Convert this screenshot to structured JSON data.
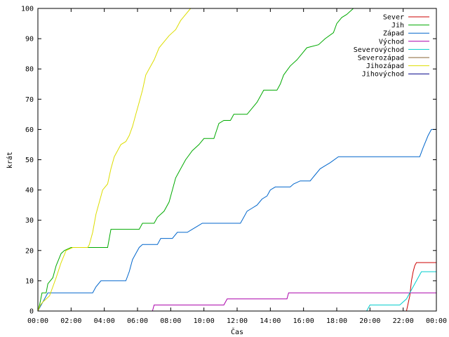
{
  "chart_data": {
    "type": "line",
    "title": "",
    "xlabel": "Čas",
    "ylabel": "krát",
    "xlim": [
      0,
      24
    ],
    "ylim": [
      0,
      100
    ],
    "x_ticks": [
      {
        "value": 0,
        "label": "00:00"
      },
      {
        "value": 2,
        "label": "02:00"
      },
      {
        "value": 4,
        "label": "04:00"
      },
      {
        "value": 6,
        "label": "06:00"
      },
      {
        "value": 8,
        "label": "08:00"
      },
      {
        "value": 10,
        "label": "10:00"
      },
      {
        "value": 12,
        "label": "12:00"
      },
      {
        "value": 14,
        "label": "14:00"
      },
      {
        "value": 16,
        "label": "16:00"
      },
      {
        "value": 18,
        "label": "18:00"
      },
      {
        "value": 20,
        "label": "20:00"
      },
      {
        "value": 22,
        "label": "22:00"
      },
      {
        "value": 24,
        "label": "00:00"
      }
    ],
    "y_ticks": [
      {
        "value": 0,
        "label": "0"
      },
      {
        "value": 10,
        "label": "10"
      },
      {
        "value": 20,
        "label": "20"
      },
      {
        "value": 30,
        "label": "30"
      },
      {
        "value": 40,
        "label": "40"
      },
      {
        "value": 50,
        "label": "50"
      },
      {
        "value": 60,
        "label": "60"
      },
      {
        "value": 70,
        "label": "70"
      },
      {
        "value": 80,
        "label": "80"
      },
      {
        "value": 90,
        "label": "90"
      },
      {
        "value": 100,
        "label": "100"
      }
    ],
    "grid": false,
    "legend_position": "top-right",
    "series": [
      {
        "name": "Sever",
        "color": "#cc0000",
        "points": [
          [
            21.5,
            0
          ],
          [
            22.2,
            0
          ],
          [
            22.4,
            5
          ],
          [
            22.5,
            10
          ],
          [
            22.6,
            13
          ],
          [
            22.7,
            15
          ],
          [
            22.8,
            16
          ],
          [
            24,
            16
          ]
        ]
      },
      {
        "name": "Jih",
        "color": "#00aa00",
        "points": [
          [
            0,
            0
          ],
          [
            0.1,
            2
          ],
          [
            0.25,
            6
          ],
          [
            0.5,
            6
          ],
          [
            0.6,
            9
          ],
          [
            0.9,
            11
          ],
          [
            1.1,
            15
          ],
          [
            1.4,
            19
          ],
          [
            1.6,
            20
          ],
          [
            2.0,
            21
          ],
          [
            2.8,
            21
          ],
          [
            4.2,
            21
          ],
          [
            4.4,
            27
          ],
          [
            6.1,
            27
          ],
          [
            6.3,
            29
          ],
          [
            7.0,
            29
          ],
          [
            7.2,
            31
          ],
          [
            7.6,
            33
          ],
          [
            7.9,
            36
          ],
          [
            8.1,
            40
          ],
          [
            8.3,
            44
          ],
          [
            8.6,
            47
          ],
          [
            8.9,
            50
          ],
          [
            9.3,
            53
          ],
          [
            9.7,
            55
          ],
          [
            10.0,
            57
          ],
          [
            10.6,
            57
          ],
          [
            10.9,
            62
          ],
          [
            11.2,
            63
          ],
          [
            11.6,
            63
          ],
          [
            11.8,
            65
          ],
          [
            12.6,
            65
          ],
          [
            12.9,
            67
          ],
          [
            13.2,
            69
          ],
          [
            13.6,
            73
          ],
          [
            14.4,
            73
          ],
          [
            14.6,
            75
          ],
          [
            14.8,
            78
          ],
          [
            15.2,
            81
          ],
          [
            15.6,
            83
          ],
          [
            15.9,
            85
          ],
          [
            16.2,
            87
          ],
          [
            16.9,
            88
          ],
          [
            17.3,
            90
          ],
          [
            17.8,
            92
          ],
          [
            18.0,
            95
          ],
          [
            18.3,
            97
          ],
          [
            18.6,
            98
          ],
          [
            19.0,
            100
          ]
        ]
      },
      {
        "name": "Západ",
        "color": "#0066cc",
        "points": [
          [
            0,
            0
          ],
          [
            0.2,
            2
          ],
          [
            0.4,
            4
          ],
          [
            0.6,
            6
          ],
          [
            3.3,
            6
          ],
          [
            3.5,
            8
          ],
          [
            3.8,
            10
          ],
          [
            5.3,
            10
          ],
          [
            5.5,
            13
          ],
          [
            5.7,
            17
          ],
          [
            5.9,
            19
          ],
          [
            6.1,
            21
          ],
          [
            6.3,
            22
          ],
          [
            7.2,
            22
          ],
          [
            7.4,
            24
          ],
          [
            8.1,
            24
          ],
          [
            8.4,
            26
          ],
          [
            9.0,
            26
          ],
          [
            9.3,
            27
          ],
          [
            9.6,
            28
          ],
          [
            9.9,
            29
          ],
          [
            12.2,
            29
          ],
          [
            12.4,
            31
          ],
          [
            12.6,
            33
          ],
          [
            12.9,
            34
          ],
          [
            13.2,
            35
          ],
          [
            13.5,
            37
          ],
          [
            13.8,
            38
          ],
          [
            14.0,
            40
          ],
          [
            14.3,
            41
          ],
          [
            15.2,
            41
          ],
          [
            15.4,
            42
          ],
          [
            15.8,
            43
          ],
          [
            16.4,
            43
          ],
          [
            16.7,
            45
          ],
          [
            17.0,
            47
          ],
          [
            17.3,
            48
          ],
          [
            17.6,
            49
          ],
          [
            18.1,
            51
          ],
          [
            23.0,
            51
          ],
          [
            23.2,
            54
          ],
          [
            23.5,
            58
          ],
          [
            23.7,
            60
          ],
          [
            24,
            60
          ]
        ]
      },
      {
        "name": "Východ",
        "color": "#aa00aa",
        "points": [
          [
            6.9,
            0
          ],
          [
            7.0,
            2
          ],
          [
            11.2,
            2
          ],
          [
            11.3,
            3
          ],
          [
            11.4,
            4
          ],
          [
            15.0,
            4
          ],
          [
            15.1,
            6
          ],
          [
            24,
            6
          ]
        ]
      },
      {
        "name": "Severovýchod",
        "color": "#00cccc",
        "points": [
          [
            19.8,
            0
          ],
          [
            20.0,
            2
          ],
          [
            21.8,
            2
          ],
          [
            22.2,
            4
          ],
          [
            22.5,
            7
          ],
          [
            22.8,
            10
          ],
          [
            23.1,
            13
          ],
          [
            24,
            13
          ]
        ]
      },
      {
        "name": "Severozápad",
        "color": "#886633",
        "points": [
          [
            21.4,
            0
          ],
          [
            21.6,
            0
          ]
        ]
      },
      {
        "name": "Jihozápad",
        "color": "#dddd00",
        "points": [
          [
            0,
            0
          ],
          [
            0.15,
            2
          ],
          [
            0.3,
            3
          ],
          [
            0.7,
            5
          ],
          [
            0.9,
            8
          ],
          [
            1.1,
            11
          ],
          [
            1.4,
            16
          ],
          [
            1.7,
            20
          ],
          [
            2.1,
            21
          ],
          [
            3.0,
            21
          ],
          [
            3.1,
            22
          ],
          [
            3.3,
            26
          ],
          [
            3.5,
            32
          ],
          [
            3.7,
            36
          ],
          [
            3.9,
            40
          ],
          [
            4.2,
            42
          ],
          [
            4.4,
            47
          ],
          [
            4.6,
            51
          ],
          [
            4.8,
            53
          ],
          [
            5.0,
            55
          ],
          [
            5.3,
            56
          ],
          [
            5.5,
            58
          ],
          [
            5.7,
            61
          ],
          [
            5.9,
            65
          ],
          [
            6.1,
            69
          ],
          [
            6.3,
            73
          ],
          [
            6.5,
            78
          ],
          [
            6.8,
            81
          ],
          [
            7.0,
            83
          ],
          [
            7.3,
            87
          ],
          [
            7.6,
            89
          ],
          [
            7.9,
            91
          ],
          [
            8.3,
            93
          ],
          [
            8.6,
            96
          ],
          [
            8.9,
            98
          ],
          [
            9.2,
            100
          ]
        ]
      },
      {
        "name": "Jihovýchod",
        "color": "#000088",
        "points": []
      }
    ]
  }
}
